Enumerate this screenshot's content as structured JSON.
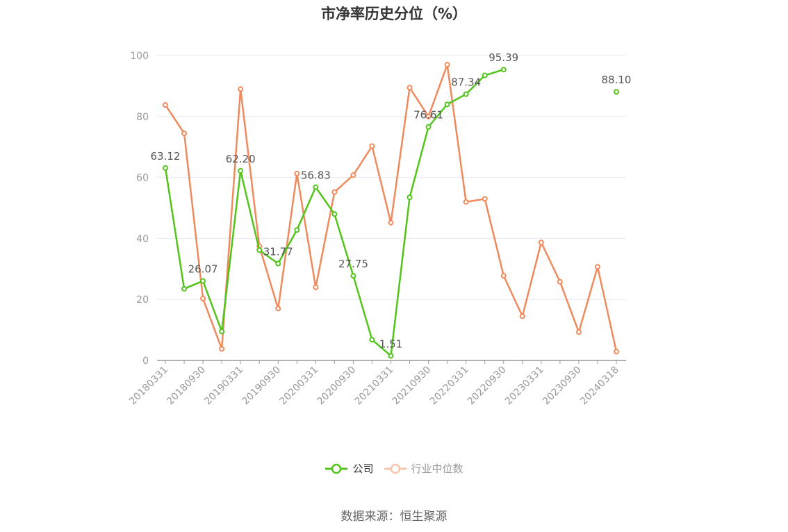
{
  "chart_data": {
    "type": "line",
    "title": "市净率历史分位（%）",
    "x_tick_labels": [
      "20180331",
      "20180930",
      "20190331",
      "20190930",
      "20200331",
      "20200930",
      "20210331",
      "20210930",
      "20220331",
      "20220930",
      "20230331",
      "20230930",
      "20240318"
    ],
    "x": [
      "20180331",
      "20180630",
      "20180930",
      "20181231",
      "20190331",
      "20190630",
      "20190930",
      "20191231",
      "20200331",
      "20200630",
      "20200930",
      "20201231",
      "20210331",
      "20210630",
      "20210930",
      "20211231",
      "20220331",
      "20220630",
      "20220930",
      "20221231",
      "20230331",
      "20230630",
      "20230930",
      "20231231",
      "20240318"
    ],
    "ylim": [
      0,
      100
    ],
    "yticks": [
      0,
      20,
      40,
      60,
      80,
      100
    ],
    "grid": true,
    "legend_position": "bottom",
    "series": [
      {
        "name": "公司",
        "color": "#52c41a",
        "values": [
          63.12,
          23.5,
          26.07,
          9.5,
          62.2,
          36.2,
          31.77,
          42.8,
          56.83,
          48.0,
          27.75,
          6.8,
          1.51,
          53.5,
          76.61,
          84.0,
          87.34,
          93.5,
          95.39,
          null,
          null,
          null,
          null,
          null,
          88.1
        ],
        "labels": {
          "0": "63.12",
          "2": "26.07",
          "4": "62.20",
          "6": "31.77",
          "8": "56.83",
          "10": "27.75",
          "12": "1.51",
          "14": "76.61",
          "16": "87.34",
          "18": "95.39",
          "24": "88.10"
        }
      },
      {
        "name": "行业中位数",
        "color": "#f08a5d",
        "values": [
          83.8,
          74.5,
          20.3,
          3.8,
          89.0,
          37.5,
          17.0,
          61.3,
          24.0,
          55.2,
          60.8,
          70.3,
          45.2,
          89.5,
          80.0,
          97.0,
          52.0,
          53.0,
          27.8,
          14.5,
          38.7,
          25.8,
          9.3,
          30.7,
          2.9
        ]
      }
    ]
  },
  "legend": {
    "company": "公司",
    "industry": "行业中位数"
  },
  "source": "数据来源：恒生聚源"
}
